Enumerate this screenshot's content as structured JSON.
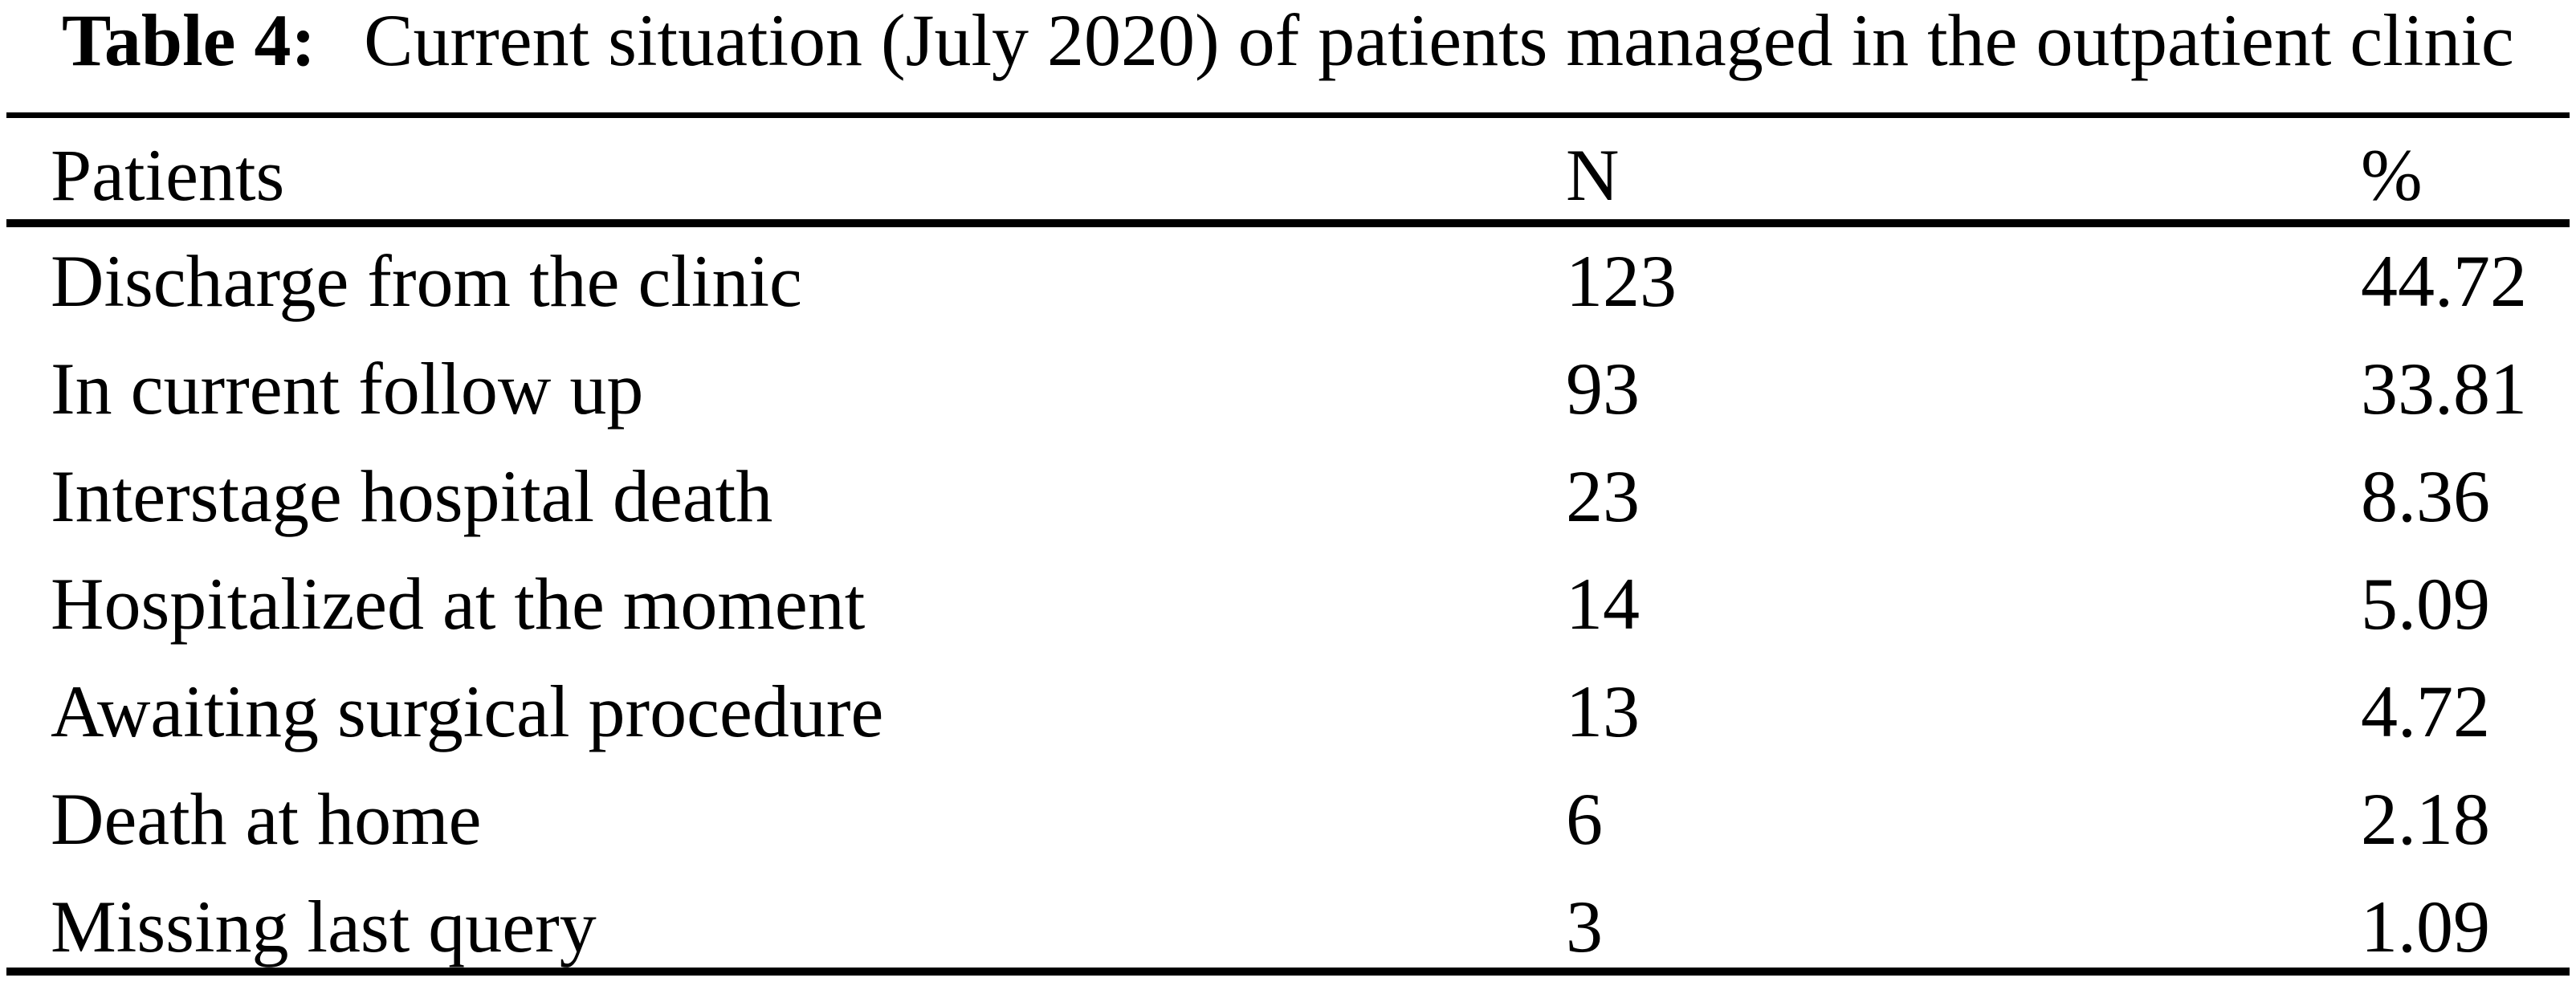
{
  "caption": {
    "label": "Table 4:",
    "text": "Current situation (July 2020) of patients managed in the outpatient clinic"
  },
  "table": {
    "columns": {
      "patients": "Patients",
      "n": "N",
      "pct": "%"
    },
    "rows": [
      {
        "label": "Discharge from the clinic",
        "n": "123",
        "pct": "44.72"
      },
      {
        "label": "In current follow up",
        "n": "93",
        "pct": "33.81"
      },
      {
        "label": "Interstage hospital death",
        "n": "23",
        "pct": "8.36"
      },
      {
        "label": "Hospitalized at the moment",
        "n": "14",
        "pct": "5.09"
      },
      {
        "label": "Awaiting surgical procedure",
        "n": "13",
        "pct": "4.72"
      },
      {
        "label": "Death at home",
        "n": "6",
        "pct": "2.18"
      },
      {
        "label": "Missing last query",
        "n": "3",
        "pct": "1.09"
      }
    ]
  },
  "colors": {
    "background": "#ffffff",
    "text": "#000000",
    "rule": "#000000"
  },
  "chart_data": {
    "type": "table",
    "title": "Table 4: Current situation (July 2020) of patients managed in the outpatient clinic",
    "columns": [
      "Patients",
      "N",
      "%"
    ],
    "rows": [
      [
        "Discharge from the clinic",
        123,
        44.72
      ],
      [
        "In current follow up",
        93,
        33.81
      ],
      [
        "Interstage hospital death",
        23,
        8.36
      ],
      [
        "Hospitalized at the moment",
        14,
        5.09
      ],
      [
        "Awaiting surgical procedure",
        13,
        4.72
      ],
      [
        "Death at home",
        6,
        2.18
      ],
      [
        "Missing last query",
        3,
        1.09
      ]
    ]
  }
}
